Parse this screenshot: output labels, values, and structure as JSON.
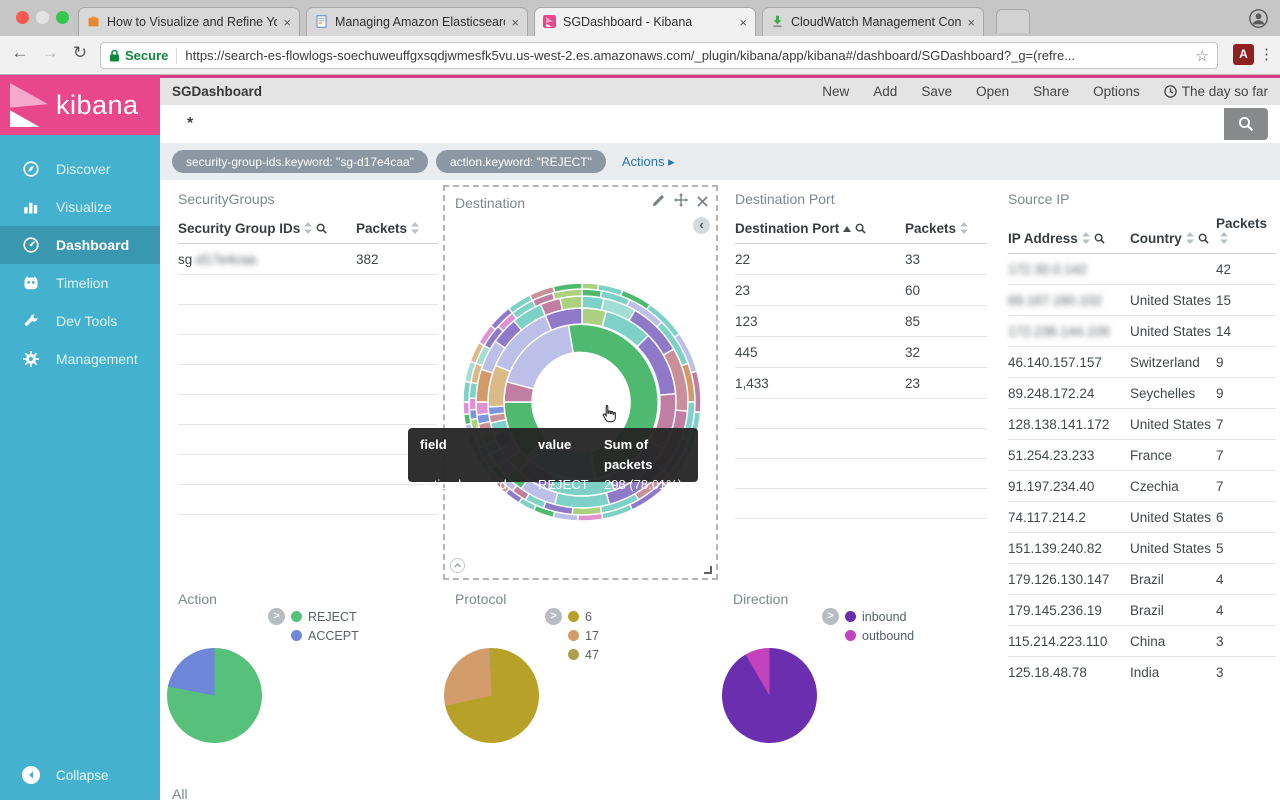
{
  "browser": {
    "traffic_light_colors": [
      "#f95a53",
      "#e3e3e3",
      "#36c64c"
    ],
    "tabs": [
      {
        "title": "How to Visualize and Refine Yo",
        "favicon": "aws-cube-icon",
        "active": false
      },
      {
        "title": "Managing Amazon Elasticsearc",
        "favicon": "document-icon",
        "active": false
      },
      {
        "title": "SGDashboard - Kibana",
        "favicon": "kibana-icon",
        "active": true
      },
      {
        "title": "CloudWatch Management Con",
        "favicon": "download-icon",
        "active": false
      }
    ],
    "close_glyph": "×",
    "address": {
      "secure_label": "Secure",
      "url": "https://search-es-flowlogs-soechuweuffgxsqdjwmesfk5vu.us-west-2.es.amazonaws.com/_plugin/kibana/app/kibana#/dashboard/SGDashboard?_g=(refre...",
      "star_glyph": "☆"
    },
    "pdf_badge": "A",
    "menu_dots": "⋮",
    "back_glyph": "←",
    "forward_glyph": "→",
    "reload_glyph": "↻"
  },
  "sidebar": {
    "logo_text": "kibana",
    "items": [
      {
        "label": "Discover",
        "icon": "compass-icon",
        "active": false
      },
      {
        "label": "Visualize",
        "icon": "bar-chart-icon",
        "active": false
      },
      {
        "label": "Dashboard",
        "icon": "gauge-icon",
        "active": true
      },
      {
        "label": "Timelion",
        "icon": "owl-icon",
        "active": false
      },
      {
        "label": "Dev Tools",
        "icon": "wrench-icon",
        "active": false
      },
      {
        "label": "Management",
        "icon": "gear-icon",
        "active": false
      }
    ],
    "collapse_label": "Collapse"
  },
  "topbar": {
    "title": "SGDashboard",
    "menu": [
      "New",
      "Add",
      "Save",
      "Open",
      "Share",
      "Options"
    ],
    "time_range": "The day so far"
  },
  "search": {
    "query": "*"
  },
  "filters": {
    "pills": [
      "security-group-ids.keyword: \"sg-d17e4caa\"",
      "action.keyword: \"REJECT\""
    ],
    "actions_label": "Actions ▸"
  },
  "panels": {
    "security_groups": {
      "title": "SecurityGroups",
      "columns": [
        {
          "label": "Security Group IDs",
          "sort": "both",
          "search": true
        },
        {
          "label": "Packets",
          "sort": "both",
          "search": false
        }
      ],
      "rows": [
        [
          {
            "t": "sg",
            "blur": "-d17e4caa"
          },
          {
            "t": "382"
          }
        ]
      ],
      "empty_rows": 9
    },
    "destination": {
      "title": "Destination",
      "tooltip": {
        "head": [
          "field",
          "value",
          "Sum of packets"
        ],
        "row": [
          "action.keyword",
          "REJECT",
          "298 (78.01%)"
        ]
      }
    },
    "destination_port": {
      "title": "Destination Port",
      "columns": [
        {
          "label": "Destination Port",
          "sort": "asc",
          "search": true
        },
        {
          "label": "Packets",
          "sort": "both",
          "search": false
        }
      ],
      "rows": [
        [
          {
            "t": "22"
          },
          {
            "t": "33"
          }
        ],
        [
          {
            "t": "23"
          },
          {
            "t": "60"
          }
        ],
        [
          {
            "t": "123"
          },
          {
            "t": "85"
          }
        ],
        [
          {
            "t": "445"
          },
          {
            "t": "32"
          }
        ],
        [
          {
            "t": "1,433"
          },
          {
            "t": "23"
          }
        ]
      ],
      "empty_rows": 5
    },
    "source_ip": {
      "title": "Source IP",
      "columns": [
        {
          "label": "IP Address",
          "sort": "both",
          "search": true
        },
        {
          "label": "Country",
          "sort": "both",
          "search": true
        },
        {
          "label": "Packets",
          "sort": "both",
          "search": false
        }
      ],
      "rows": [
        [
          {
            "blur": "172.30.0.142"
          },
          {
            "t": ""
          },
          {
            "t": "42"
          }
        ],
        [
          {
            "blur": "69.167.160.102"
          },
          {
            "t": "United States"
          },
          {
            "t": "15"
          }
        ],
        [
          {
            "blur": "172.236.144.109"
          },
          {
            "t": "United States"
          },
          {
            "t": "14"
          }
        ],
        [
          {
            "t": "46.140.157.157"
          },
          {
            "t": "Switzerland"
          },
          {
            "t": "9"
          }
        ],
        [
          {
            "t": "89.248.172.24"
          },
          {
            "t": "Seychelles"
          },
          {
            "t": "9"
          }
        ],
        [
          {
            "t": "128.138.141.172"
          },
          {
            "t": "United States"
          },
          {
            "t": "7"
          }
        ],
        [
          {
            "t": "51.254.23.233"
          },
          {
            "t": "France"
          },
          {
            "t": "7"
          }
        ],
        [
          {
            "t": "91.197.234.40"
          },
          {
            "t": "Czechia"
          },
          {
            "t": "7"
          }
        ],
        [
          {
            "t": "74.117.214.2"
          },
          {
            "t": "United States"
          },
          {
            "t": "6"
          }
        ],
        [
          {
            "t": "151.139.240.82"
          },
          {
            "t": "United States"
          },
          {
            "t": "5"
          }
        ],
        [
          {
            "t": "179.126.130.147"
          },
          {
            "t": "Brazil"
          },
          {
            "t": "4"
          }
        ],
        [
          {
            "t": "179.145.236.19"
          },
          {
            "t": "Brazil"
          },
          {
            "t": "4"
          }
        ],
        [
          {
            "t": "115.214.223.110"
          },
          {
            "t": "China"
          },
          {
            "t": "3"
          }
        ],
        [
          {
            "t": "125.18.48.78"
          },
          {
            "t": "India"
          },
          {
            "t": "3"
          }
        ]
      ],
      "empty_rows": 0
    },
    "all": {
      "title": "All"
    }
  },
  "chart_data": [
    {
      "type": "pie",
      "title": "Action",
      "legend_position": "right",
      "slices": [
        {
          "label": "REJECT",
          "percent": 78.01,
          "value": 298,
          "color": "#57c17b"
        },
        {
          "label": "ACCEPT",
          "percent": 21.99,
          "value": 84,
          "color": "#6f87d8"
        }
      ],
      "total_packets": 382
    },
    {
      "type": "pie",
      "title": "Protocol",
      "legend_position": "right",
      "slices": [
        {
          "label": "6",
          "percent": 71.5,
          "color": "#b8a128"
        },
        {
          "label": "17",
          "percent": 27.8,
          "color": "#d39c6b"
        },
        {
          "label": "47",
          "percent": 0.7,
          "color": "#aba24b"
        }
      ]
    },
    {
      "type": "pie",
      "title": "Direction",
      "legend_position": "right",
      "slices": [
        {
          "label": "inbound",
          "percent": 91.6,
          "color": "#6a2eae"
        },
        {
          "label": "outbound",
          "percent": 8.4,
          "color": "#c343bf"
        }
      ]
    },
    {
      "type": "sunburst",
      "title": "Destination",
      "hovered_segment": {
        "field": "action.keyword",
        "value": "REJECT",
        "sum_of_packets": "298 (78.01%)"
      },
      "palette": {
        "green": "#4fba6f",
        "teal": "#7dd1c7",
        "lteal": "#a2ded6",
        "purple": "#9179ca",
        "lavender": "#bcbfe8",
        "mauve": "#c07fa2",
        "pink": "#de92d3",
        "lightgreen": "#abd07f",
        "tan": "#dcba88",
        "salmon": "#d29a6a",
        "rose": "#c9909a",
        "blue": "#7b96dd"
      },
      "radii": [
        [
          50,
          78
        ],
        [
          78,
          94
        ],
        [
          94,
          106
        ],
        [
          106,
          113
        ],
        [
          113,
          119
        ]
      ],
      "rings": [
        [
          [
            285,
            350,
            "lavender"
          ],
          [
            350,
            530,
            "green"
          ],
          [
            170,
            225,
            "teal"
          ],
          [
            225,
            270,
            "green"
          ],
          [
            270,
            285,
            "mauve"
          ]
        ],
        [
          [
            0,
            15,
            "lightgreen"
          ],
          [
            15,
            45,
            "teal"
          ],
          [
            45,
            85,
            "purple"
          ],
          [
            85,
            120,
            "mauve"
          ],
          [
            120,
            160,
            "purple"
          ],
          [
            160,
            200,
            "teal"
          ],
          [
            200,
            222,
            "purple"
          ],
          [
            222,
            232,
            "lightgreen"
          ],
          [
            232,
            240,
            "pink"
          ],
          [
            240,
            250,
            "purple"
          ],
          [
            250,
            257,
            "teal"
          ],
          [
            257,
            262,
            "rose"
          ],
          [
            262,
            267,
            "blue"
          ],
          [
            267,
            293,
            "tan"
          ],
          [
            293,
            337,
            "lavender"
          ],
          [
            337,
            360,
            "purple"
          ]
        ],
        [
          [
            0,
            12,
            "teal"
          ],
          [
            12,
            30,
            "lteal"
          ],
          [
            30,
            60,
            "purple"
          ],
          [
            60,
            95,
            "rose"
          ],
          [
            95,
            130,
            "mauve"
          ],
          [
            130,
            165,
            "purple"
          ],
          [
            165,
            195,
            "teal"
          ],
          [
            195,
            215,
            "lavender"
          ],
          [
            215,
            225,
            "green"
          ],
          [
            225,
            233,
            "pink"
          ],
          [
            233,
            240,
            "purple"
          ],
          [
            240,
            246,
            "teal"
          ],
          [
            246,
            252,
            "lightgreen"
          ],
          [
            252,
            258,
            "rose"
          ],
          [
            258,
            263,
            "blue"
          ],
          [
            263,
            270,
            "pink"
          ],
          [
            270,
            288,
            "salmon"
          ],
          [
            288,
            305,
            "lavender"
          ],
          [
            305,
            320,
            "purple"
          ],
          [
            320,
            337,
            "teal"
          ],
          [
            337,
            348,
            "mauve"
          ],
          [
            348,
            360,
            "lightgreen"
          ]
        ],
        [
          [
            0,
            10,
            "green"
          ],
          [
            10,
            25,
            "teal"
          ],
          [
            25,
            45,
            "lavender"
          ],
          [
            45,
            70,
            "teal"
          ],
          [
            70,
            90,
            "salmon"
          ],
          [
            90,
            110,
            "teal"
          ],
          [
            110,
            130,
            "purple"
          ],
          [
            130,
            150,
            "rose"
          ],
          [
            150,
            170,
            "teal"
          ],
          [
            170,
            185,
            "lightgreen"
          ],
          [
            185,
            200,
            "purple"
          ],
          [
            200,
            210,
            "teal"
          ],
          [
            210,
            218,
            "mauve"
          ],
          [
            218,
            226,
            "lavender"
          ],
          [
            226,
            234,
            "green"
          ],
          [
            234,
            240,
            "pink"
          ],
          [
            240,
            246,
            "purple"
          ],
          [
            246,
            251,
            "teal"
          ],
          [
            251,
            256,
            "rose"
          ],
          [
            256,
            261,
            "lightgreen"
          ],
          [
            261,
            266,
            "blue"
          ],
          [
            266,
            272,
            "pink"
          ],
          [
            272,
            280,
            "teal"
          ],
          [
            280,
            290,
            "tan"
          ],
          [
            290,
            300,
            "lteal"
          ],
          [
            300,
            312,
            "purple"
          ],
          [
            312,
            322,
            "pink"
          ],
          [
            322,
            334,
            "teal"
          ],
          [
            334,
            345,
            "mauve"
          ],
          [
            345,
            360,
            "lightgreen"
          ]
        ],
        [
          [
            0,
            8,
            "lightgreen"
          ],
          [
            8,
            20,
            "teal"
          ],
          [
            20,
            35,
            "green"
          ],
          [
            35,
            55,
            "teal"
          ],
          [
            55,
            75,
            "lavender"
          ],
          [
            75,
            95,
            "mauve"
          ],
          [
            95,
            115,
            "teal"
          ],
          [
            115,
            135,
            "rose"
          ],
          [
            135,
            155,
            "purple"
          ],
          [
            155,
            170,
            "teal"
          ],
          [
            170,
            182,
            "pink"
          ],
          [
            182,
            194,
            "lavender"
          ],
          [
            194,
            204,
            "green"
          ],
          [
            204,
            212,
            "teal"
          ],
          [
            212,
            220,
            "purple"
          ],
          [
            220,
            227,
            "rose"
          ],
          [
            227,
            233,
            "pink"
          ],
          [
            233,
            239,
            "teal"
          ],
          [
            239,
            244,
            "lightgreen"
          ],
          [
            244,
            249,
            "blue"
          ],
          [
            249,
            254,
            "mauve"
          ],
          [
            254,
            259,
            "lavender"
          ],
          [
            259,
            264,
            "green"
          ],
          [
            264,
            270,
            "pink"
          ],
          [
            270,
            280,
            "teal"
          ],
          [
            280,
            290,
            "lteal"
          ],
          [
            290,
            300,
            "tan"
          ],
          [
            300,
            310,
            "pink"
          ],
          [
            310,
            322,
            "purple"
          ],
          [
            322,
            334,
            "teal"
          ],
          [
            334,
            346,
            "rose"
          ],
          [
            346,
            360,
            "green"
          ]
        ]
      ]
    }
  ]
}
